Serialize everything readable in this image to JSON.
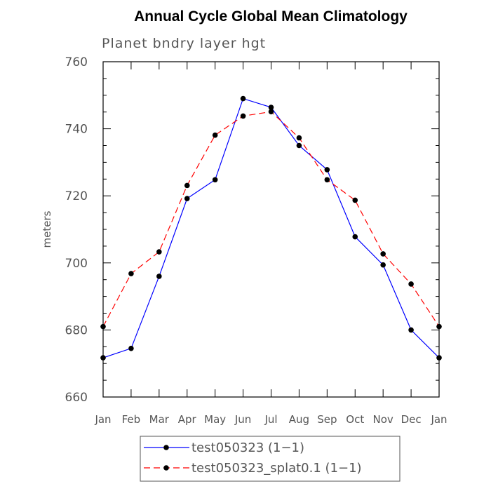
{
  "chart_data": {
    "type": "line",
    "title": "Annual Cycle Global Mean Climatology",
    "subtitle": "Planet bndry layer hgt",
    "xlabel": "",
    "ylabel": "meters",
    "categories": [
      "Jan",
      "Feb",
      "Mar",
      "Apr",
      "May",
      "Jun",
      "Jul",
      "Aug",
      "Sep",
      "Oct",
      "Nov",
      "Dec",
      "Jan"
    ],
    "ylim": [
      660,
      760
    ],
    "yticks": [
      660,
      680,
      700,
      720,
      740,
      760
    ],
    "grid": false,
    "legend_position": "bottom-center",
    "series": [
      {
        "name": "test050323 (1−1)",
        "color": "#0000ff",
        "dash": "solid",
        "marker": "filled-circle",
        "values": [
          671.7,
          674.5,
          696,
          719.2,
          724.8,
          749,
          746.4,
          735,
          727.8,
          707.8,
          699.4,
          680,
          671.7
        ]
      },
      {
        "name": "test050323_splat0.1 (1−1)",
        "color": "#ff0000",
        "dash": "dashed",
        "marker": "filled-circle",
        "values": [
          681,
          696.8,
          703.3,
          723.1,
          738.1,
          743.8,
          745.1,
          737.3,
          724.8,
          718.7,
          702.7,
          693.7,
          681
        ]
      }
    ]
  }
}
